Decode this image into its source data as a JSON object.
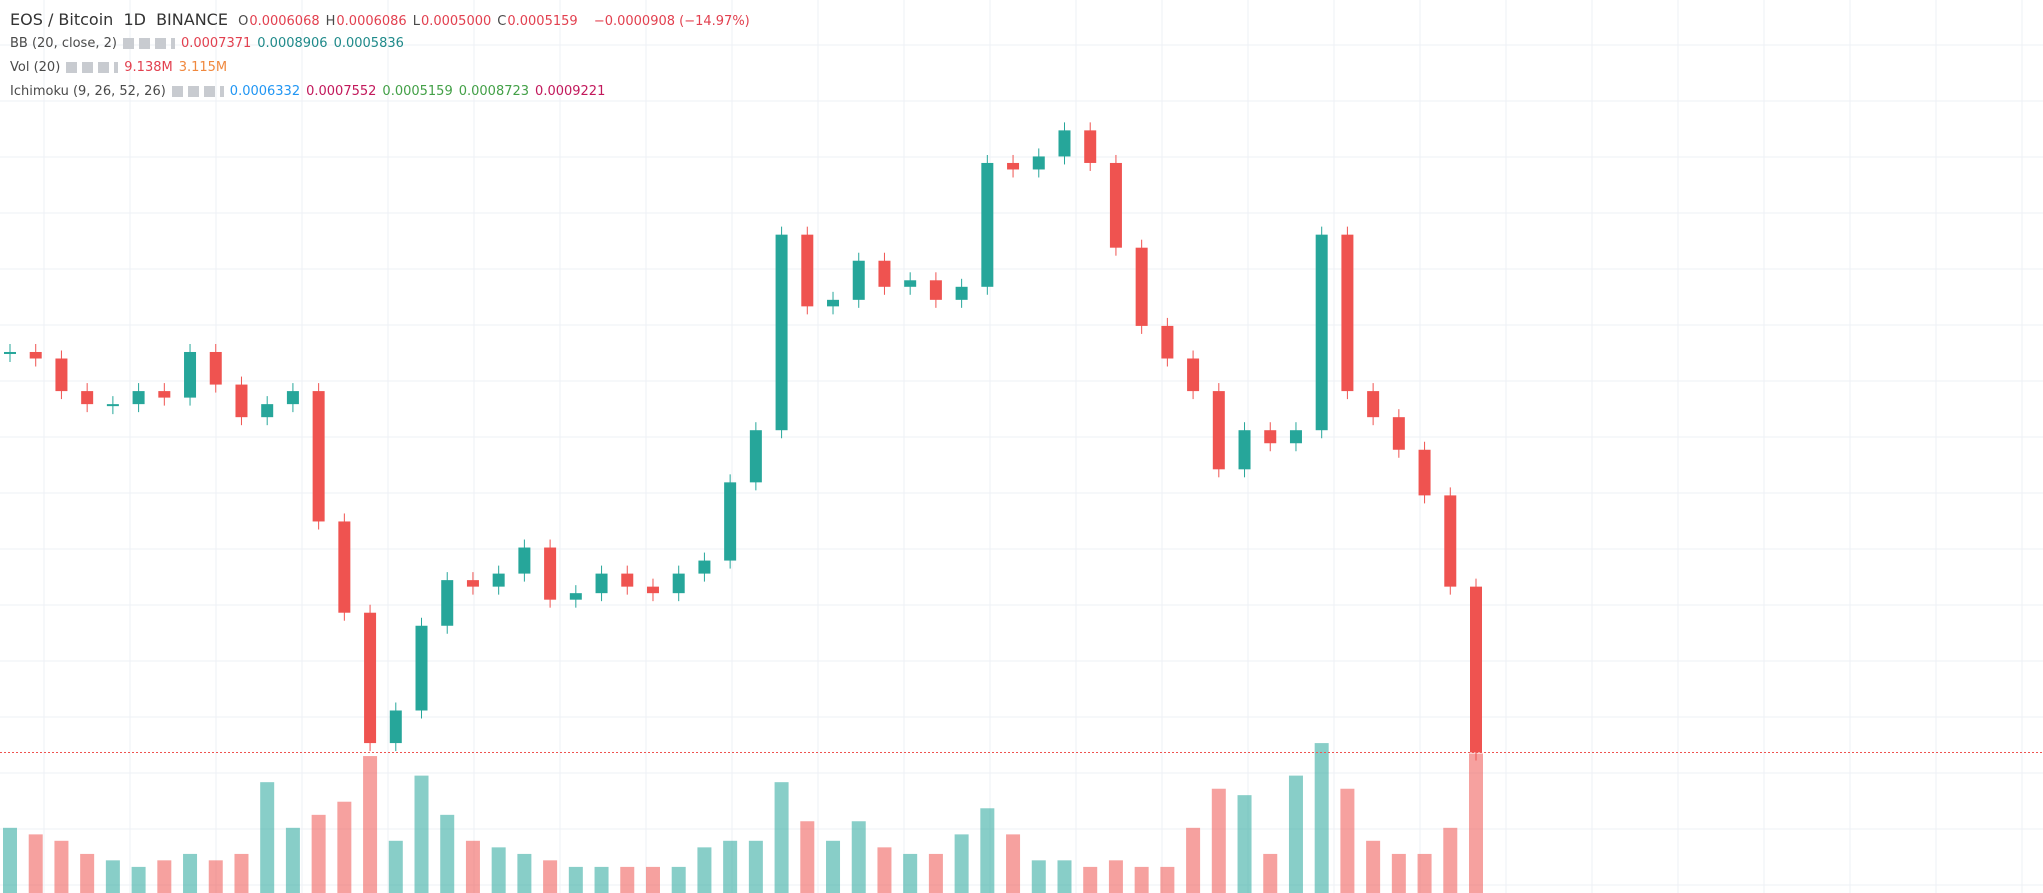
{
  "header": {
    "symbol": "EOS / Bitcoin",
    "interval": "1D",
    "exchange": "BINANCE",
    "ohlc": [
      {
        "label": "O",
        "value": "0.0006068"
      },
      {
        "label": "H",
        "value": "0.0006086"
      },
      {
        "label": "L",
        "value": "0.0005000"
      },
      {
        "label": "C",
        "value": "0.0005159"
      }
    ],
    "change": "−0.0000908 (−14.97%)"
  },
  "indicators": [
    {
      "name": "BB (20, close, 2)",
      "values": [
        "0.0007371",
        "0.0008906",
        "0.0005836"
      ],
      "colors": [
        "#e2404f",
        "#1f8a8a",
        "#1f8a8a"
      ]
    },
    {
      "name": "Vol (20)",
      "values": [
        "9.138M",
        "3.115M"
      ],
      "colors": [
        "#e2404f",
        "#f0883e"
      ]
    },
    {
      "name": "Ichimoku (9, 26, 52, 26)",
      "values": [
        "0.0006332",
        "0.0007552",
        "0.0005159",
        "0.0008723",
        "0.0009221"
      ],
      "colors": [
        "#2196f3",
        "#c2185b",
        "#43a047",
        "#43a047",
        "#c2185b"
      ]
    }
  ],
  "chart_data": {
    "type": "candlestick",
    "values": [
      0.0008784,
      0.0008725,
      0.000843,
      0.0008312,
      0.0008312,
      0.000843,
      0.0008371,
      0.0008784,
      0.0008489,
      0.0008194,
      0.0008312,
      0.000843,
      0.000725,
      0.0006424,
      0.0005244,
      0.0005539,
      0.0006306,
      0.0006719,
      0.000666,
      0.0006778,
      0.0007014,
      0.0006542,
      0.0006601,
      0.0006778,
      0.000666,
      0.0006601,
      0.0006778,
      0.0006896,
      0.0007604,
      0.0008076,
      0.0009846,
      0.0009197,
      0.0009256,
      0.000961,
      0.0009374,
      0.0009433,
      0.0009256,
      0.0009374,
      0.0010495,
      0.0010436,
      0.0010554,
      0.001079,
      0.0010495,
      0.0009728,
      0.000902,
      0.0008725,
      0.000843,
      0.0007722,
      0.0008076,
      0.0007958,
      0.0008076,
      0.0009846,
      0.000843,
      0.0008194,
      0.0007899,
      0.0007486,
      0.000666,
      0.0005159
    ],
    "volume": [
      4.27,
      3.84,
      3.42,
      2.56,
      2.14,
      1.71,
      2.14,
      2.56,
      2.14,
      2.56,
      7.26,
      4.27,
      5.12,
      5.98,
      8.97,
      3.42,
      7.69,
      5.12,
      3.42,
      2.99,
      2.56,
      2.14,
      1.71,
      1.71,
      1.71,
      1.71,
      1.71,
      2.99,
      3.42,
      3.42,
      7.26,
      4.7,
      3.42,
      4.7,
      2.99,
      2.56,
      2.56,
      3.84,
      5.55,
      3.84,
      2.14,
      2.14,
      1.71,
      2.14,
      1.71,
      1.71,
      4.27,
      6.83,
      6.41,
      2.56,
      7.69,
      9.82,
      6.83,
      3.42,
      2.56,
      2.56,
      4.27,
      9.138
    ],
    "ylim": [
      0.0003887,
      0.001197
    ],
    "volume_ylim": [
      0,
      58.5
    ],
    "up_color": "#26a69a",
    "down_color": "#ef5350"
  }
}
